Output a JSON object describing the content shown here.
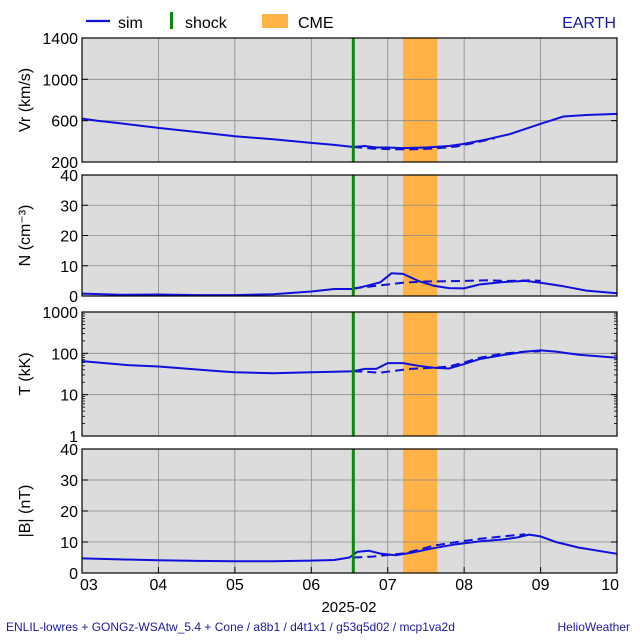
{
  "legend": {
    "sim_label": "sim",
    "shock_label": "shock",
    "cme_label": "CME",
    "location_label": "EARTH"
  },
  "footer": {
    "model_text": "ENLIL-lowres + GONGz-WSAtw_5.4 + Cone / a8b1 / d4t1x1 / g53q5d02 / mcp1va2d",
    "brand_text": "HelioWeather"
  },
  "colors": {
    "sim": "#1010dd",
    "shock": "#0a8a0a",
    "cme": "#ffb347",
    "panel_bg": "#dcdcdc",
    "grid": "#888888",
    "text_blue": "#1a1aa0"
  },
  "chart_data": {
    "type": "line",
    "xlabel": "2025-02",
    "x_ticks": [
      "03",
      "04",
      "05",
      "06",
      "07",
      "08",
      "09",
      "10"
    ],
    "x_tick_values": [
      3,
      4,
      5,
      6,
      7,
      8,
      9,
      10
    ],
    "xlim": [
      3,
      10
    ],
    "shock_time": 6.55,
    "cme_interval": [
      7.2,
      7.65
    ],
    "panels": [
      {
        "id": "vr",
        "ylabel": "Vr (km/s)",
        "scale": "linear",
        "ylim": [
          200,
          1400
        ],
        "yticks": [
          200,
          600,
          1000,
          1400
        ],
        "tick_labels": [
          "200",
          "600",
          "1000",
          "1400"
        ],
        "series": [
          {
            "name": "sim",
            "style": "solid",
            "x": [
              3.0,
              3.2,
              3.5,
              4.0,
              4.5,
              5.0,
              5.5,
              6.0,
              6.3,
              6.55,
              6.7,
              6.85,
              7.0,
              7.2,
              7.5,
              7.8,
              8.0,
              8.3,
              8.6,
              9.0,
              9.3,
              9.6,
              10.0
            ],
            "y": [
              620,
              600,
              575,
              530,
              490,
              450,
              420,
              385,
              365,
              345,
              355,
              340,
              340,
              335,
              340,
              355,
              375,
              420,
              470,
              570,
              640,
              655,
              665
            ]
          },
          {
            "style": "dashed",
            "x": [
              6.55,
              6.8,
              7.0,
              7.3,
              7.6,
              7.9,
              8.1,
              8.4
            ],
            "y": [
              345,
              330,
              325,
              322,
              330,
              350,
              380,
              430
            ]
          }
        ]
      },
      {
        "id": "n",
        "ylabel": "N (cm⁻³)",
        "scale": "linear",
        "ylim": [
          0,
          40
        ],
        "yticks": [
          0,
          10,
          20,
          30,
          40
        ],
        "tick_labels": [
          "0",
          "10",
          "20",
          "30",
          "40"
        ],
        "series": [
          {
            "name": "sim",
            "style": "solid",
            "x": [
              3.0,
              3.5,
              4.0,
              4.5,
              5.0,
              5.5,
              6.0,
              6.3,
              6.55,
              6.7,
              6.9,
              7.05,
              7.2,
              7.4,
              7.6,
              7.8,
              8.0,
              8.2,
              8.5,
              8.8,
              9.0,
              9.3,
              9.6,
              10.0
            ],
            "y": [
              0.8,
              0.4,
              0.5,
              0.3,
              0.3,
              0.6,
              1.5,
              2.3,
              2.3,
              3.2,
              4.5,
              7.5,
              7.3,
              5.0,
              3.4,
              2.6,
              2.5,
              3.8,
              4.6,
              5.0,
              4.4,
              3.2,
              1.8,
              0.9
            ]
          },
          {
            "style": "dashed",
            "x": [
              6.55,
              6.8,
              7.0,
              7.2,
              7.5,
              7.8,
              8.0,
              8.3,
              8.6,
              8.9,
              9.0
            ],
            "y": [
              2.5,
              3.2,
              3.8,
              4.4,
              4.8,
              4.9,
              5.0,
              5.2,
              5.0,
              5.2,
              5.0
            ]
          }
        ]
      },
      {
        "id": "t",
        "ylabel": "T (kK)",
        "scale": "log",
        "ylim": [
          1,
          1000
        ],
        "yticks": [
          1,
          10,
          100,
          1000
        ],
        "tick_labels": [
          "1",
          "10",
          "100",
          "1000"
        ],
        "series": [
          {
            "name": "sim",
            "style": "solid",
            "x": [
              3.0,
              3.3,
              3.6,
              4.0,
              4.4,
              4.8,
              5.0,
              5.5,
              6.0,
              6.3,
              6.55,
              6.7,
              6.85,
              7.0,
              7.2,
              7.4,
              7.6,
              7.8,
              8.0,
              8.2,
              8.5,
              8.8,
              9.0,
              9.2,
              9.5,
              10.0
            ],
            "y": [
              65,
              58,
              52,
              48,
              42,
              37,
              35,
              33,
              35,
              36,
              37,
              42,
              42,
              58,
              58,
              50,
              45,
              43,
              55,
              72,
              90,
              110,
              118,
              110,
              92,
              78
            ]
          },
          {
            "style": "dashed",
            "x": [
              6.55,
              6.7,
              6.9,
              7.1,
              7.3,
              7.6,
              7.8,
              8.0,
              8.2,
              8.5,
              8.8,
              9.0
            ],
            "y": [
              37,
              36,
              34,
              38,
              42,
              45,
              48,
              60,
              78,
              98,
              110,
              112
            ]
          }
        ]
      },
      {
        "id": "b",
        "ylabel": "|B| (nT)",
        "scale": "linear",
        "ylim": [
          0,
          40
        ],
        "yticks": [
          0,
          10,
          20,
          30,
          40
        ],
        "tick_labels": [
          "0",
          "10",
          "20",
          "30",
          "40"
        ],
        "series": [
          {
            "name": "sim",
            "style": "solid",
            "x": [
              3.0,
              3.5,
              4.0,
              4.5,
              5.0,
              5.5,
              6.0,
              6.3,
              6.5,
              6.6,
              6.75,
              6.9,
              7.1,
              7.3,
              7.6,
              7.9,
              8.2,
              8.5,
              8.7,
              8.85,
              9.0,
              9.2,
              9.5,
              10.0
            ],
            "y": [
              4.7,
              4.4,
              4.1,
              3.9,
              3.8,
              3.8,
              4.0,
              4.2,
              5.0,
              6.8,
              7.2,
              6.3,
              5.7,
              6.5,
              8.0,
              9.3,
              10.2,
              10.8,
              11.5,
              12.4,
              11.8,
              10.0,
              8.2,
              6.2
            ]
          },
          {
            "style": "dashed",
            "x": [
              6.55,
              6.8,
              7.0,
              7.2,
              7.4,
              7.6,
              7.9,
              8.2,
              8.5,
              8.8
            ],
            "y": [
              5.0,
              5.3,
              5.8,
              6.3,
              7.5,
              8.8,
              10.0,
              11.0,
              11.8,
              12.5
            ]
          }
        ]
      }
    ]
  }
}
